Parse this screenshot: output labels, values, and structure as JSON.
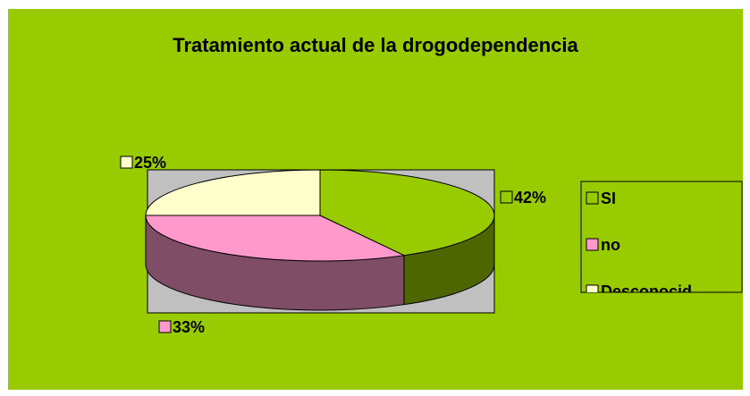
{
  "chart_data": {
    "type": "pie",
    "title": "Tratamiento actual de la drogodependencia",
    "categories": [
      "SI",
      "no",
      "Desconocid"
    ],
    "values": [
      42,
      33,
      25
    ],
    "value_labels": [
      "42%",
      "33%",
      "25%"
    ],
    "colors": [
      "#99cc00",
      "#ff99cc",
      "#ffffcc"
    ],
    "legend": "right"
  }
}
